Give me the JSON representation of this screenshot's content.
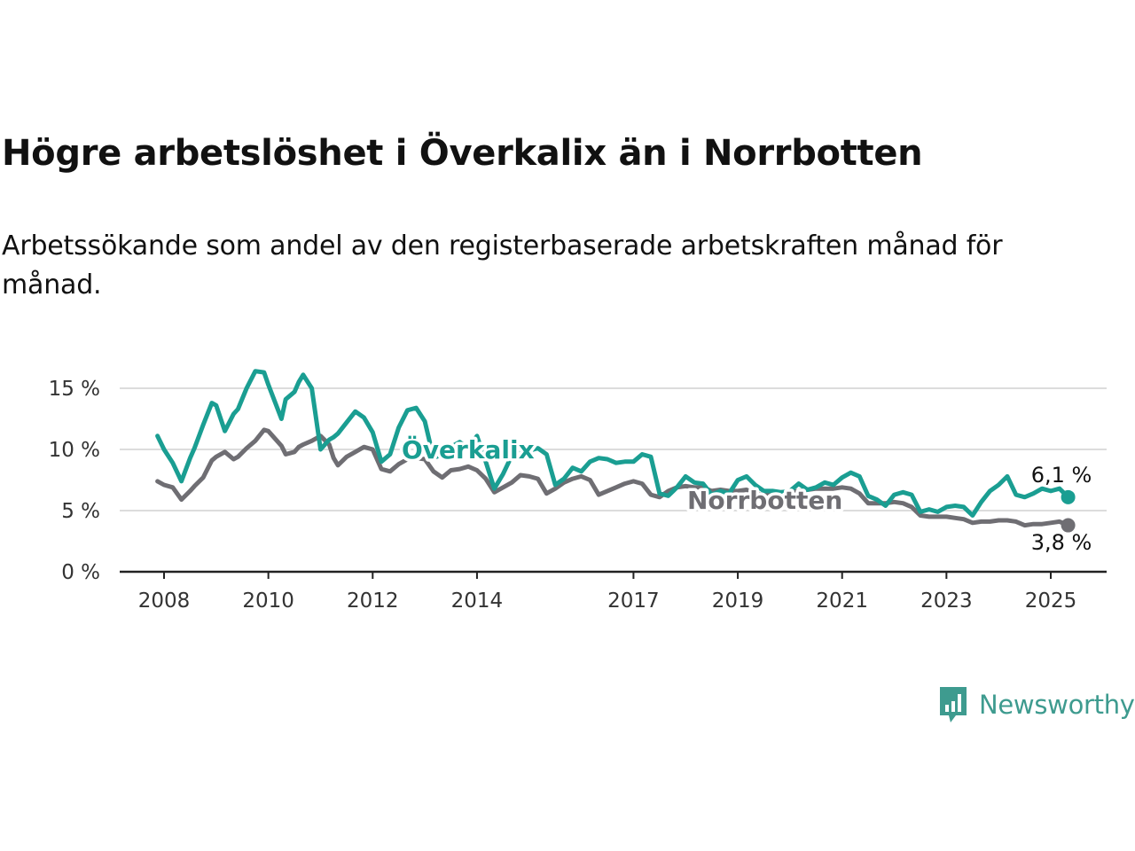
{
  "title": "Högre arbetslöshet i Överkalix än i Norrbotten",
  "subtitle": "Arbetssökande som andel av den registerbaserade arbetskraften månad för månad.",
  "brand": {
    "name": "Newsworthy",
    "color": "#3e9b8f",
    "icon": "bar-chart-speech-bubble-icon"
  },
  "chart_data": {
    "type": "line",
    "title": "Högre arbetslöshet i Överkalix än i Norrbotten",
    "xlabel": "",
    "ylabel": "",
    "xlim": [
      2007.875,
      2025.417
    ],
    "ylim": [
      0,
      15
    ],
    "xticks": [
      2008,
      2010,
      2012,
      2014,
      2017,
      2019,
      2021,
      2023,
      2025
    ],
    "xtick_labels": [
      "2008",
      "2010",
      "2012",
      "2014",
      "2017",
      "2019",
      "2021",
      "2023",
      "2025"
    ],
    "yticks": [
      0,
      5,
      10,
      15
    ],
    "ytick_labels": [
      "0 %",
      "5 %",
      "10 %",
      "15 %"
    ],
    "grid": "horizontal",
    "series": [
      {
        "name": "Överkalix",
        "color": "#1a9e92",
        "end_label": "6,1 %",
        "x": [
          2007.875,
          2008.0,
          2008.167,
          2008.333,
          2008.5,
          2008.583,
          2008.75,
          2008.917,
          2009.0,
          2009.167,
          2009.333,
          2009.417,
          2009.583,
          2009.75,
          2009.917,
          2010.0,
          2010.25,
          2010.333,
          2010.5,
          2010.583,
          2010.667,
          2010.833,
          2011.0,
          2011.167,
          2011.25,
          2011.333,
          2011.5,
          2011.667,
          2011.833,
          2012.0,
          2012.167,
          2012.333,
          2012.5,
          2012.667,
          2012.833,
          2013.0,
          2013.167,
          2013.333,
          2013.5,
          2013.667,
          2013.833,
          2014.0,
          2014.167,
          2014.333,
          2014.5,
          2014.667,
          2014.833,
          2015.0,
          2015.167,
          2015.333,
          2015.5,
          2015.667,
          2015.833,
          2016.0,
          2016.167,
          2016.333,
          2016.5,
          2016.667,
          2016.833,
          2017.0,
          2017.167,
          2017.333,
          2017.5,
          2017.667,
          2017.833,
          2018.0,
          2018.167,
          2018.333,
          2018.5,
          2018.667,
          2018.833,
          2019.0,
          2019.167,
          2019.333,
          2019.5,
          2019.667,
          2019.833,
          2020.0,
          2020.167,
          2020.333,
          2020.5,
          2020.667,
          2020.833,
          2021.0,
          2021.167,
          2021.333,
          2021.5,
          2021.667,
          2021.833,
          2022.0,
          2022.167,
          2022.333,
          2022.5,
          2022.667,
          2022.833,
          2023.0,
          2023.167,
          2023.333,
          2023.5,
          2023.667,
          2023.833,
          2024.0,
          2024.167,
          2024.333,
          2024.5,
          2024.667,
          2024.833,
          2025.0,
          2025.167,
          2025.333
        ],
        "y": [
          11.1,
          10.0,
          8.9,
          7.4,
          9.3,
          10.1,
          12.0,
          13.8,
          13.6,
          11.5,
          12.9,
          13.3,
          15.0,
          16.4,
          16.3,
          15.3,
          12.5,
          14.1,
          14.7,
          15.5,
          16.1,
          15.0,
          10.0,
          10.8,
          11.0,
          11.3,
          12.2,
          13.1,
          12.6,
          11.4,
          9.0,
          9.6,
          11.8,
          13.2,
          13.4,
          12.3,
          9.3,
          9.6,
          10.2,
          10.6,
          10.1,
          11.1,
          9.0,
          6.8,
          8.0,
          9.5,
          9.8,
          9.9,
          10.1,
          9.6,
          7.1,
          7.6,
          8.5,
          8.2,
          9.0,
          9.3,
          9.2,
          8.9,
          9.0,
          9.0,
          9.6,
          9.4,
          6.4,
          6.2,
          6.9,
          7.8,
          7.3,
          7.2,
          6.3,
          6.6,
          6.4,
          7.5,
          7.8,
          7.1,
          6.6,
          6.6,
          6.5,
          6.6,
          7.2,
          6.7,
          6.9,
          7.3,
          7.1,
          7.7,
          8.1,
          7.8,
          6.2,
          5.9,
          5.4,
          6.3,
          6.5,
          6.3,
          4.9,
          5.1,
          4.9,
          5.3,
          5.4,
          5.3,
          4.6,
          5.7,
          6.6,
          7.1,
          7.8,
          6.3,
          6.1,
          6.4,
          6.8,
          6.6,
          6.8,
          6.1
        ]
      },
      {
        "name": "Norrbotten",
        "color": "#6f6e73",
        "end_label": "3,8 %",
        "x": [
          2007.875,
          2008.0,
          2008.167,
          2008.333,
          2008.5,
          2008.583,
          2008.75,
          2008.917,
          2009.0,
          2009.167,
          2009.333,
          2009.417,
          2009.583,
          2009.75,
          2009.917,
          2010.0,
          2010.25,
          2010.333,
          2010.5,
          2010.583,
          2010.667,
          2010.833,
          2011.0,
          2011.167,
          2011.25,
          2011.333,
          2011.5,
          2011.667,
          2011.833,
          2012.0,
          2012.167,
          2012.333,
          2012.5,
          2012.667,
          2012.833,
          2013.0,
          2013.167,
          2013.333,
          2013.5,
          2013.667,
          2013.833,
          2014.0,
          2014.167,
          2014.333,
          2014.5,
          2014.667,
          2014.833,
          2015.0,
          2015.167,
          2015.333,
          2015.5,
          2015.667,
          2015.833,
          2016.0,
          2016.167,
          2016.333,
          2016.5,
          2016.667,
          2016.833,
          2017.0,
          2017.167,
          2017.333,
          2017.5,
          2017.667,
          2017.833,
          2018.0,
          2018.167,
          2018.333,
          2018.5,
          2018.667,
          2018.833,
          2019.0,
          2019.167,
          2019.333,
          2019.5,
          2019.667,
          2019.833,
          2020.0,
          2020.167,
          2020.333,
          2020.5,
          2020.667,
          2020.833,
          2021.0,
          2021.167,
          2021.333,
          2021.5,
          2021.667,
          2021.833,
          2022.0,
          2022.167,
          2022.333,
          2022.5,
          2022.667,
          2022.833,
          2023.0,
          2023.167,
          2023.333,
          2023.5,
          2023.667,
          2023.833,
          2024.0,
          2024.167,
          2024.333,
          2024.5,
          2024.667,
          2024.833,
          2025.0,
          2025.167,
          2025.333
        ],
        "y": [
          7.4,
          7.1,
          6.9,
          5.9,
          6.6,
          7.0,
          7.7,
          9.1,
          9.4,
          9.8,
          9.2,
          9.4,
          10.1,
          10.7,
          11.6,
          11.5,
          10.3,
          9.6,
          9.8,
          10.2,
          10.4,
          10.7,
          11.1,
          10.4,
          9.3,
          8.7,
          9.4,
          9.8,
          10.2,
          10.0,
          8.4,
          8.2,
          8.8,
          9.2,
          9.3,
          9.2,
          8.2,
          7.7,
          8.3,
          8.4,
          8.6,
          8.3,
          7.6,
          6.5,
          6.9,
          7.3,
          7.9,
          7.8,
          7.6,
          6.4,
          6.8,
          7.3,
          7.6,
          7.8,
          7.5,
          6.3,
          6.6,
          6.9,
          7.2,
          7.4,
          7.2,
          6.3,
          6.1,
          6.6,
          6.9,
          7.0,
          6.9,
          6.9,
          6.6,
          6.7,
          6.6,
          6.6,
          6.7,
          6.4,
          6.3,
          6.4,
          6.5,
          6.5,
          6.6,
          6.7,
          6.8,
          6.8,
          6.8,
          6.9,
          6.8,
          6.4,
          5.6,
          5.6,
          5.6,
          5.7,
          5.6,
          5.3,
          4.6,
          4.5,
          4.5,
          4.5,
          4.4,
          4.3,
          4.0,
          4.1,
          4.1,
          4.2,
          4.2,
          4.1,
          3.8,
          3.9,
          3.9,
          4.0,
          4.1,
          3.8
        ]
      }
    ],
    "annotations": [
      {
        "text": "Överkalix",
        "series": "Överkalix"
      },
      {
        "text": "Norrbotten",
        "series": "Norrbotten"
      },
      {
        "text": "6,1 %",
        "series": "Överkalix"
      },
      {
        "text": "3,8 %",
        "series": "Norrbotten"
      }
    ]
  }
}
